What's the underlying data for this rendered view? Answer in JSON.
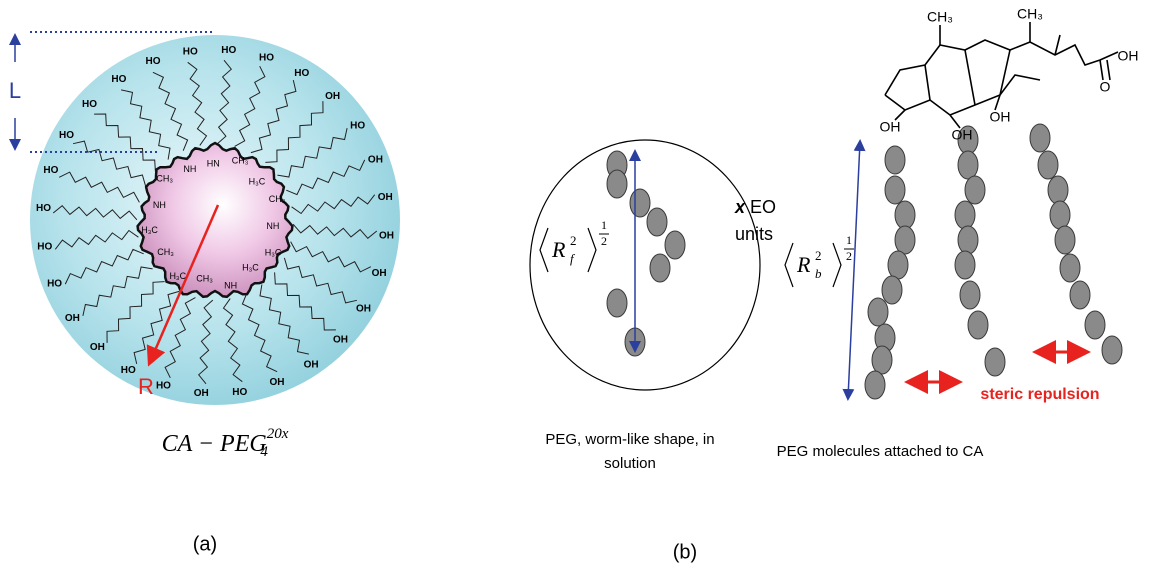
{
  "panel_a": {
    "length_label": "L",
    "radius_label": "R",
    "formula": {
      "base": "CA − PEG",
      "subscript": "4",
      "superscript": "20x"
    },
    "chain_ends": [
      "HO",
      "HO",
      "HO",
      "OH",
      "HO",
      "OH",
      "OH",
      "OH",
      "OH",
      "OH",
      "OH",
      "OH",
      "OH",
      "HO",
      "OH",
      "HO",
      "HO",
      "OH",
      "OH",
      "HO",
      "HO",
      "HO",
      "HO",
      "HO",
      "HO",
      "HO",
      "HO",
      "HO"
    ],
    "core_groups": [
      "HN",
      "CH₃",
      "H₃C",
      "CH₃",
      "NH",
      "H₃C",
      "H₃C",
      "NH",
      "CH₃",
      "H₃C",
      "CH₃",
      "H₃C",
      "NH",
      "CH₃",
      "NH"
    ],
    "panel_label": "(a)"
  },
  "panel_b": {
    "solution": {
      "radius_symbol": {
        "base": "R",
        "subscript": "f",
        "superscript": "2",
        "exponent_top": "1",
        "exponent_bottom": "2"
      },
      "eo_label": {
        "variable": "x",
        "text": "EO",
        "second_line": "units"
      },
      "caption": [
        "PEG, worm-like shape, in",
        "solution"
      ]
    },
    "attached": {
      "molecule_labels": [
        "CH₃",
        "CH₃",
        "OH",
        "OH",
        "OH",
        "OH",
        "O"
      ],
      "radius_symbol": {
        "base": "R",
        "subscript": "b",
        "superscript": "2",
        "exponent_top": "1",
        "exponent_bottom": "2"
      },
      "repulsion_label": "steric repulsion",
      "caption": "PEG molecules attached to CA"
    },
    "panel_label": "(b)"
  }
}
